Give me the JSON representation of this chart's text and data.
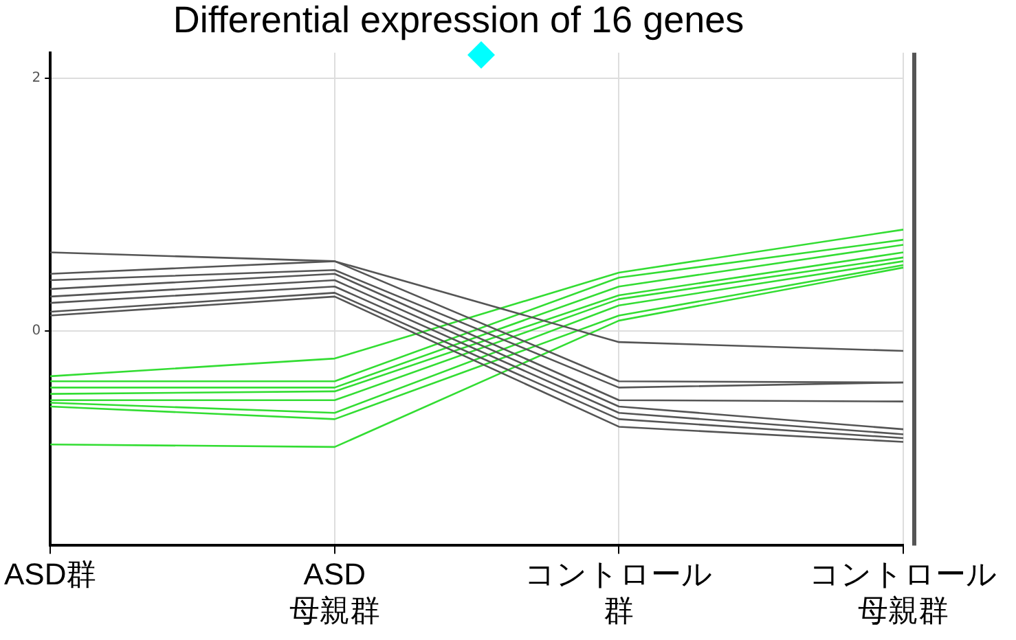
{
  "chart_data": {
    "type": "line",
    "title": "Differential expression of 16 genes",
    "categories": [
      "ASD群",
      "ASD 母親群",
      "コントロール群",
      "コントロール母親群"
    ],
    "series": [
      {
        "color": "#555555",
        "values": [
          0.62,
          0.55,
          -0.09,
          -0.16
        ]
      },
      {
        "color": "#555555",
        "values": [
          0.45,
          0.55,
          -0.4,
          -0.41
        ]
      },
      {
        "color": "#555555",
        "values": [
          0.4,
          0.48,
          -0.45,
          -0.41
        ]
      },
      {
        "color": "#555555",
        "values": [
          0.33,
          0.45,
          -0.55,
          -0.56
        ]
      },
      {
        "color": "#555555",
        "values": [
          0.27,
          0.4,
          -0.6,
          -0.78
        ]
      },
      {
        "color": "#555555",
        "values": [
          0.22,
          0.35,
          -0.65,
          -0.82
        ]
      },
      {
        "color": "#555555",
        "values": [
          0.15,
          0.3,
          -0.7,
          -0.85
        ]
      },
      {
        "color": "#555555",
        "values": [
          0.12,
          0.27,
          -0.76,
          -0.88
        ]
      },
      {
        "color": "#33dd33",
        "values": [
          -0.36,
          -0.22,
          0.46,
          0.8
        ]
      },
      {
        "color": "#33dd33",
        "values": [
          -0.4,
          -0.4,
          0.42,
          0.72
        ]
      },
      {
        "color": "#33dd33",
        "values": [
          -0.45,
          -0.45,
          0.35,
          0.68
        ]
      },
      {
        "color": "#33dd33",
        "values": [
          -0.5,
          -0.48,
          0.28,
          0.62
        ]
      },
      {
        "color": "#33dd33",
        "values": [
          -0.55,
          -0.55,
          0.25,
          0.58
        ]
      },
      {
        "color": "#33dd33",
        "values": [
          -0.57,
          -0.65,
          0.2,
          0.55
        ]
      },
      {
        "color": "#33dd33",
        "values": [
          -0.6,
          -0.7,
          0.12,
          0.52
        ]
      },
      {
        "color": "#33dd33",
        "values": [
          -0.9,
          -0.92,
          0.08,
          0.5
        ]
      }
    ],
    "ylim": [
      -1.7,
      2.2
    ],
    "yticks": [
      0,
      2
    ],
    "grid": true,
    "legend": false,
    "marker": "none",
    "line_style": "solid"
  }
}
